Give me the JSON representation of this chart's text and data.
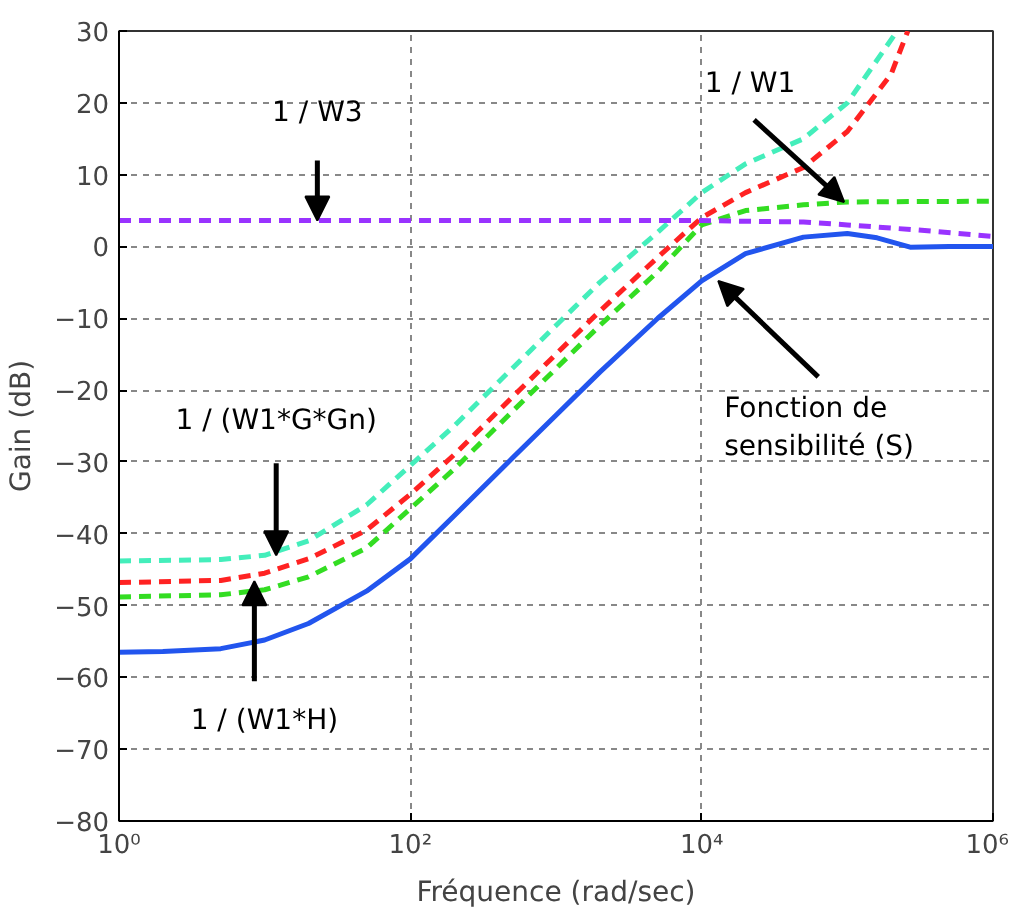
{
  "chart_data": {
    "type": "line",
    "xlabel": "Fréquence (rad/sec)",
    "ylabel": "Gain (dB)",
    "log": "x",
    "grid": true,
    "xlim": [
      1,
      1000000
    ],
    "ylim": [
      -80,
      30
    ],
    "xticks": [
      {
        "value": 1,
        "label": "10⁰"
      },
      {
        "value": 100,
        "label": "10²"
      },
      {
        "value": 10000,
        "label": "10⁴"
      },
      {
        "value": 1000000,
        "label": "10⁶"
      }
    ],
    "yticks": [
      -80,
      -70,
      -60,
      -50,
      -40,
      -30,
      -20,
      -10,
      0,
      10,
      20,
      30
    ],
    "series": [
      {
        "color": "#2255ee",
        "line_style": "solid",
        "x": [
          1,
          2,
          5,
          10,
          20,
          50,
          100,
          200,
          500,
          1000,
          2000,
          5000,
          10000,
          20000,
          50000,
          100000,
          160000,
          270000,
          500000,
          1000000
        ],
        "values": [
          -56.5,
          -56.4,
          -56,
          -54.8,
          -52.5,
          -48,
          -43.5,
          -37.5,
          -29.5,
          -23.5,
          -17.5,
          -10,
          -4.8,
          -1,
          1.3,
          1.8,
          1.2,
          -0.1,
          0,
          0
        ]
      },
      {
        "color": "#44eebb",
        "line_style": "dashed",
        "x": [
          1,
          5,
          10,
          20,
          50,
          100,
          200,
          500,
          1000,
          2000,
          5000,
          10000,
          20000,
          50000,
          100000,
          220000
        ],
        "values": [
          -43.8,
          -43.6,
          -43,
          -41,
          -36,
          -30.5,
          -25,
          -17,
          -11,
          -5,
          2,
          7.5,
          11.5,
          15,
          20,
          30
        ]
      },
      {
        "color": "#ff2222",
        "line_style": "dashed",
        "x": [
          1,
          5,
          10,
          20,
          50,
          100,
          200,
          500,
          1000,
          2000,
          5000,
          10000,
          20000,
          50000,
          100000,
          200000,
          260000
        ],
        "values": [
          -46.8,
          -46.5,
          -45.5,
          -43.5,
          -39.5,
          -34.5,
          -29,
          -21,
          -15,
          -9,
          -1.5,
          4,
          7.5,
          11,
          16,
          24,
          30
        ]
      },
      {
        "color": "#33dd22",
        "line_style": "dashed",
        "x": [
          1,
          5,
          10,
          20,
          50,
          100,
          200,
          500,
          1000,
          2000,
          5000,
          10000,
          20000,
          50000,
          100000,
          1000000
        ],
        "values": [
          -48.8,
          -48.5,
          -47.8,
          -46,
          -42,
          -36.5,
          -31,
          -23,
          -17,
          -11,
          -3.5,
          3,
          5,
          5.8,
          6.2,
          6.3
        ]
      },
      {
        "color": "#9933ff",
        "line_style": "dashed",
        "x": [
          1,
          10000,
          50000,
          100000,
          300000,
          1000000
        ],
        "values": [
          3.6,
          3.6,
          3.4,
          3,
          2.3,
          1.4
        ]
      }
    ],
    "annotations": [
      {
        "text": "1 / W3",
        "x": 23,
        "y": 3.6
      },
      {
        "text": "1 / (W1*G*Gn)",
        "x": 12,
        "y": -43
      },
      {
        "text": "1 / (W1*H)",
        "x": 8.5,
        "y": -46.6
      },
      {
        "text": "1 / W1",
        "x": 95000,
        "y": 6.2
      },
      {
        "text": "Fonction de\nsensibilité (S)",
        "x": 13000,
        "y": -4.8
      }
    ]
  }
}
